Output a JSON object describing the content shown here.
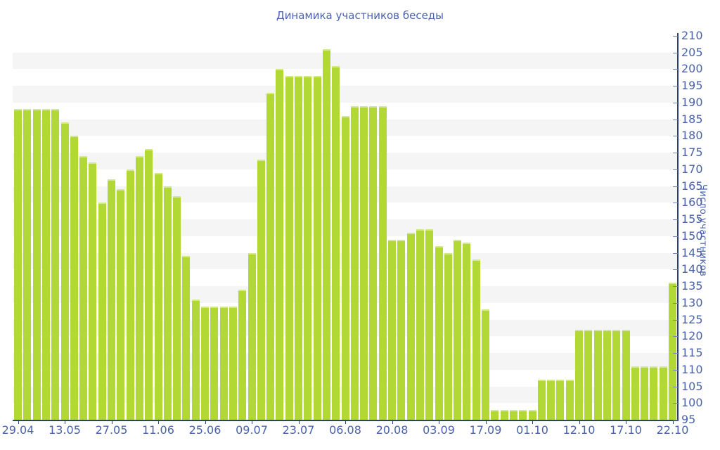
{
  "chart_data": {
    "type": "bar",
    "title": "Динамика участников беседы",
    "ylabel": "Число участников",
    "ylim": [
      95,
      210
    ],
    "ytick_step": 5,
    "grid": "alternating horizontal stripes every 5 units, gray band above each multiple of 10",
    "legend_position": "none",
    "bar_color": "#b1d834",
    "stripe_color": "#f5f5f5",
    "axis_color": "#2b3f77",
    "text_color": "#4a62a9",
    "x_label_every_n_bars": 5,
    "categories": [
      "29.04",
      "13.05",
      "27.05",
      "11.06",
      "25.06",
      "09.07",
      "23.07",
      "06.08",
      "20.08",
      "03.09",
      "17.09",
      "01.10",
      "12.10",
      "17.10",
      "22.10"
    ],
    "values": [
      188,
      188,
      188,
      188,
      188,
      184,
      180,
      174,
      172,
      160,
      167,
      164,
      170,
      174,
      176,
      169,
      165,
      162,
      144,
      131,
      129,
      129,
      129,
      129,
      134,
      145,
      173,
      193,
      200,
      198,
      198,
      198,
      198,
      206,
      201,
      186,
      189,
      189,
      189,
      189,
      149,
      149,
      151,
      152,
      152,
      147,
      145,
      149,
      148,
      143,
      128,
      98,
      98,
      98,
      98,
      98,
      107,
      107,
      107,
      107,
      122,
      122,
      122,
      122,
      122,
      122,
      111,
      111,
      111,
      111,
      136
    ],
    "yticks": [
      95,
      100,
      105,
      110,
      115,
      120,
      125,
      130,
      135,
      140,
      145,
      150,
      155,
      160,
      165,
      170,
      175,
      180,
      185,
      190,
      195,
      200,
      205,
      210
    ]
  }
}
